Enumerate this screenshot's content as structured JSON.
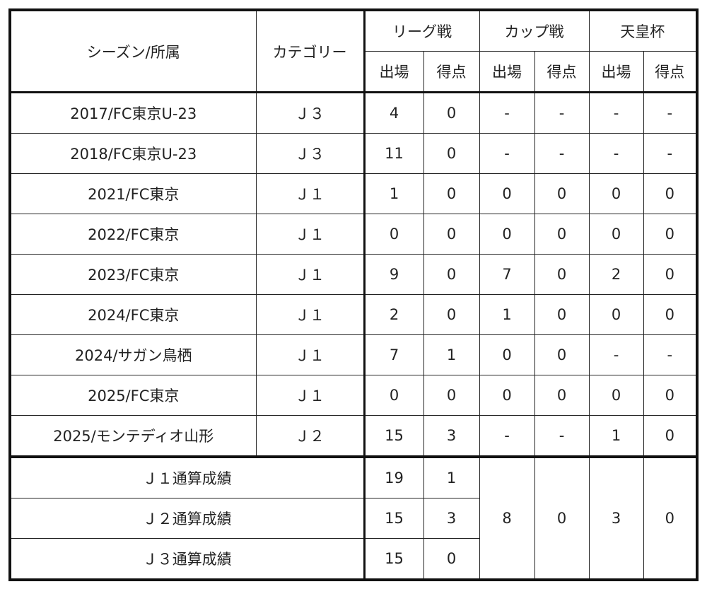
{
  "headers": {
    "season": "シーズン/所属",
    "category": "カテゴリー",
    "league": "リーグ戦",
    "cup": "カップ戦",
    "emperor": "天皇杯",
    "apps": "出場",
    "goals": "得点"
  },
  "rows": [
    {
      "season": "2017/FC東京U-23",
      "category": "Ｊ３",
      "league_apps": "4",
      "league_goals": "0",
      "cup_apps": "-",
      "cup_goals": "-",
      "emp_apps": "-",
      "emp_goals": "-"
    },
    {
      "season": "2018/FC東京U-23",
      "category": "Ｊ３",
      "league_apps": "11",
      "league_goals": "0",
      "cup_apps": "-",
      "cup_goals": "-",
      "emp_apps": "-",
      "emp_goals": "-"
    },
    {
      "season": "2021/FC東京",
      "category": "Ｊ１",
      "league_apps": "1",
      "league_goals": "0",
      "cup_apps": "0",
      "cup_goals": "0",
      "emp_apps": "0",
      "emp_goals": "0"
    },
    {
      "season": "2022/FC東京",
      "category": "Ｊ１",
      "league_apps": "0",
      "league_goals": "0",
      "cup_apps": "0",
      "cup_goals": "0",
      "emp_apps": "0",
      "emp_goals": "0"
    },
    {
      "season": "2023/FC東京",
      "category": "Ｊ１",
      "league_apps": "9",
      "league_goals": "0",
      "cup_apps": "7",
      "cup_goals": "0",
      "emp_apps": "2",
      "emp_goals": "0"
    },
    {
      "season": "2024/FC東京",
      "category": "Ｊ１",
      "league_apps": "2",
      "league_goals": "0",
      "cup_apps": "1",
      "cup_goals": "0",
      "emp_apps": "0",
      "emp_goals": "0"
    },
    {
      "season": "2024/サガン鳥栖",
      "category": "Ｊ１",
      "league_apps": "7",
      "league_goals": "1",
      "cup_apps": "0",
      "cup_goals": "0",
      "emp_apps": "-",
      "emp_goals": "-"
    },
    {
      "season": "2025/FC東京",
      "category": "Ｊ１",
      "league_apps": "0",
      "league_goals": "0",
      "cup_apps": "0",
      "cup_goals": "0",
      "emp_apps": "0",
      "emp_goals": "0"
    },
    {
      "season": "2025/モンテディオ山形",
      "category": "Ｊ２",
      "league_apps": "15",
      "league_goals": "3",
      "cup_apps": "-",
      "cup_goals": "-",
      "emp_apps": "1",
      "emp_goals": "0"
    }
  ],
  "totals": [
    {
      "label": "Ｊ１通算成績",
      "league_apps": "19",
      "league_goals": "1"
    },
    {
      "label": "Ｊ２通算成績",
      "league_apps": "15",
      "league_goals": "3"
    },
    {
      "label": "Ｊ３通算成績",
      "league_apps": "15",
      "league_goals": "0"
    }
  ],
  "totals_cup": {
    "apps": "8",
    "goals": "0"
  },
  "totals_emperor": {
    "apps": "3",
    "goals": "0"
  }
}
